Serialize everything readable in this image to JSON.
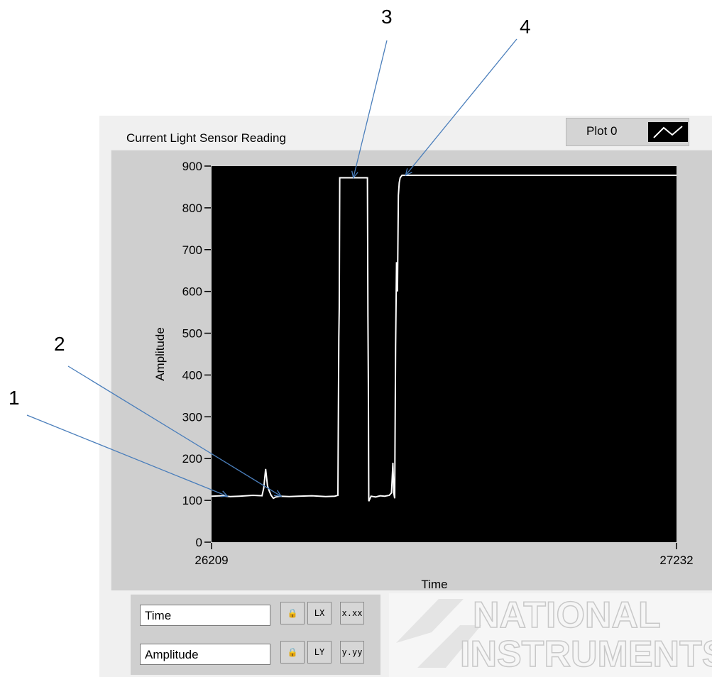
{
  "chart_data": {
    "type": "line",
    "title": "Current Light Sensor Reading",
    "xlabel": "Time",
    "ylabel": "Amplitude",
    "xlim": [
      26209,
      27232
    ],
    "ylim": [
      0,
      900
    ],
    "x_ticks": [
      "26209",
      "27232"
    ],
    "y_ticks": [
      "0",
      "100",
      "200",
      "300",
      "400",
      "500",
      "600",
      "700",
      "800",
      "900"
    ],
    "legend": {
      "label": "Plot 0",
      "position": "top-right"
    },
    "background": "#000000",
    "line_color": "#ffffff",
    "grid": false,
    "series": [
      {
        "name": "Plot 0",
        "x": [
          26209,
          26230,
          26250,
          26270,
          26300,
          26320,
          26324,
          26328,
          26332,
          26335,
          26340,
          26345,
          26350,
          26360,
          26380,
          26400,
          26430,
          26460,
          26480,
          26487,
          26489,
          26490,
          26491,
          26552,
          26553,
          26554,
          26555,
          26560,
          26570,
          26580,
          26590,
          26600,
          26605,
          26608,
          26610,
          26612,
          26614,
          26616,
          26618,
          26620,
          26622,
          26624,
          26628,
          26635,
          26650,
          27232
        ],
        "y": [
          110,
          111,
          109,
          110,
          112,
          111,
          130,
          175,
          135,
          125,
          112,
          105,
          108,
          110,
          109,
          110,
          111,
          109,
          110,
          112,
          490,
          560,
          872,
          872,
          540,
          380,
          98,
          110,
          108,
          111,
          110,
          112,
          118,
          190,
          118,
          105,
          470,
          670,
          600,
          830,
          860,
          872,
          878,
          878,
          878,
          878
        ]
      }
    ]
  },
  "scale_legend": {
    "x_name": "Time",
    "y_name": "Amplitude",
    "x_format": "x.xx",
    "y_format": "y.yy",
    "x_scale_label": "LX",
    "y_scale_label": "LY"
  },
  "watermark": {
    "line1": "NATIONAL",
    "line2": "INSTRUMENTS"
  },
  "callouts": [
    {
      "label": "1",
      "target_x": 26244,
      "target_y": 110
    },
    {
      "label": "2",
      "target_x": 26362,
      "target_y": 110
    },
    {
      "label": "3",
      "target_x": 26521,
      "target_y": 872
    },
    {
      "label": "4",
      "target_x": 26636,
      "target_y": 878
    }
  ],
  "colors": {
    "callout_line": "#4a7ebb",
    "frame": "#cfcfcf",
    "panel": "#f0f0f0"
  }
}
